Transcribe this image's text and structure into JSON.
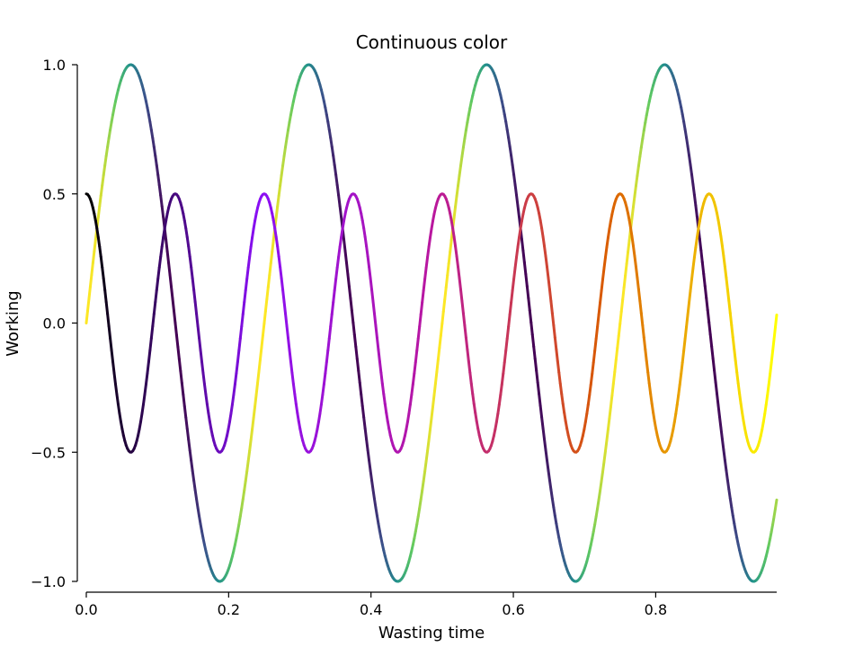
{
  "chart_data": {
    "type": "line",
    "title": "Continuous color",
    "xlabel": "Wasting time",
    "ylabel": "Working",
    "xlim": [
      0,
      0.97
    ],
    "ylim": [
      -1.0,
      1.0
    ],
    "x_ticks": [
      0.0,
      0.2,
      0.4,
      0.6,
      0.8
    ],
    "x_tick_labels": [
      "0.0",
      "0.2",
      "0.4",
      "0.6",
      "0.8"
    ],
    "y_ticks": [
      -1.0,
      -0.5,
      0.0,
      0.5,
      1.0
    ],
    "y_tick_labels": [
      "−1.0",
      "−0.5",
      "0.0",
      "0.5",
      "1.0"
    ],
    "grid": false,
    "legend": "none",
    "series": [
      {
        "formula": "y = sin(2π·4x)",
        "amplitude": 1.0,
        "frequency": 4,
        "phase": "sine",
        "x_range": [
          0,
          0.97
        ],
        "colormap": "viridis",
        "color_by": "local slope (dy/dx)",
        "colormap_stops": [
          "#440154",
          "#3b528b",
          "#21918c",
          "#5ec962",
          "#fde725"
        ]
      },
      {
        "formula": "y = 0.5·cos(2π·8x)",
        "amplitude": 0.5,
        "frequency": 8,
        "phase": "cosine",
        "x_range": [
          0,
          0.97
        ],
        "colormap": "gnuplot",
        "color_by": "x",
        "colormap_stops": [
          "#000000",
          "#8a0ff5",
          "#b9179f",
          "#d95b00",
          "#ffff00"
        ]
      }
    ]
  }
}
